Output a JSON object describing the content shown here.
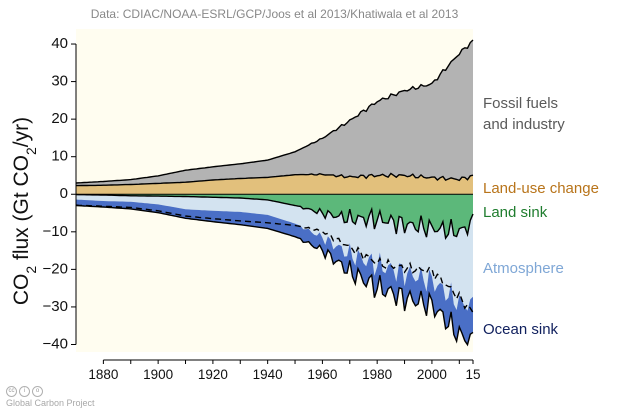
{
  "chart_data": {
    "type": "area",
    "source_note": "Data: CDIAC/NOAA-ESRL/GCP/Joos et al 2013/Khatiwala et al 2013",
    "ylabel": "CO2 flux (Gt CO2/yr)",
    "xlim": [
      1870,
      2015
    ],
    "ylim": [
      -42,
      44
    ],
    "x_ticks": [
      "1880",
      "1900",
      "1920",
      "1940",
      "1960",
      "1980",
      "2000",
      "15"
    ],
    "y_ticks": [
      "40",
      "30",
      "20",
      "10",
      "0",
      "−10",
      "−20",
      "−30",
      "−40"
    ],
    "years": [
      1870,
      1880,
      1890,
      1900,
      1910,
      1920,
      1930,
      1940,
      1950,
      1960,
      1970,
      1980,
      1990,
      2000,
      2010,
      2015
    ],
    "series": [
      {
        "name": "Fossil fuels and industry",
        "color": "#b3b3b3",
        "values": [
          0.7,
          1.0,
          1.3,
          2.0,
          3.2,
          3.5,
          3.9,
          4.6,
          6.1,
          9.6,
          15.0,
          19.7,
          22.6,
          25.0,
          33.5,
          36.0
        ]
      },
      {
        "name": "Land-use change",
        "color": "#e2c07c",
        "values": [
          2.3,
          2.4,
          2.6,
          2.9,
          3.2,
          3.8,
          4.2,
          4.5,
          5.2,
          5.3,
          4.6,
          5.0,
          5.0,
          4.4,
          4.0,
          4.8
        ]
      },
      {
        "name": "Land sink",
        "color": "#5cb87a",
        "values": [
          -0.1,
          -0.2,
          -0.4,
          -0.5,
          -0.6,
          -0.8,
          -1.0,
          -1.5,
          -3.0,
          -5.0,
          -6.5,
          -6.5,
          -8.0,
          -9.0,
          -10.0,
          -7.5
        ]
      },
      {
        "name": "Atmosphere",
        "color": "#d3e3f0",
        "values": [
          -1.3,
          -1.6,
          -1.6,
          -2.2,
          -3.4,
          -3.6,
          -3.7,
          -4.0,
          -4.8,
          -6.5,
          -9.5,
          -12.2,
          -13.0,
          -14.0,
          -19.0,
          -22.0
        ]
      },
      {
        "name": "Ocean sink",
        "color": "#4a6fc6",
        "values": [
          -1.6,
          -1.6,
          -1.9,
          -2.2,
          -2.4,
          -2.9,
          -3.4,
          -3.6,
          -3.5,
          -3.4,
          -4.6,
          -6.0,
          -6.6,
          -6.4,
          -8.5,
          -9.5
        ]
      }
    ],
    "annotations": [
      {
        "text": "Fossil fuels",
        "color": "#5a5a5a"
      },
      {
        "text": "and industry",
        "color": "#5a5a5a"
      },
      {
        "text": "Land-use change",
        "color": "#b8741a"
      },
      {
        "text": "Land sink",
        "color": "#1f7d2e"
      },
      {
        "text": "Atmosphere",
        "color": "#7fa7d6"
      },
      {
        "text": "Ocean sink",
        "color": "#10205e"
      }
    ]
  },
  "credit": "Global Carbon Project"
}
